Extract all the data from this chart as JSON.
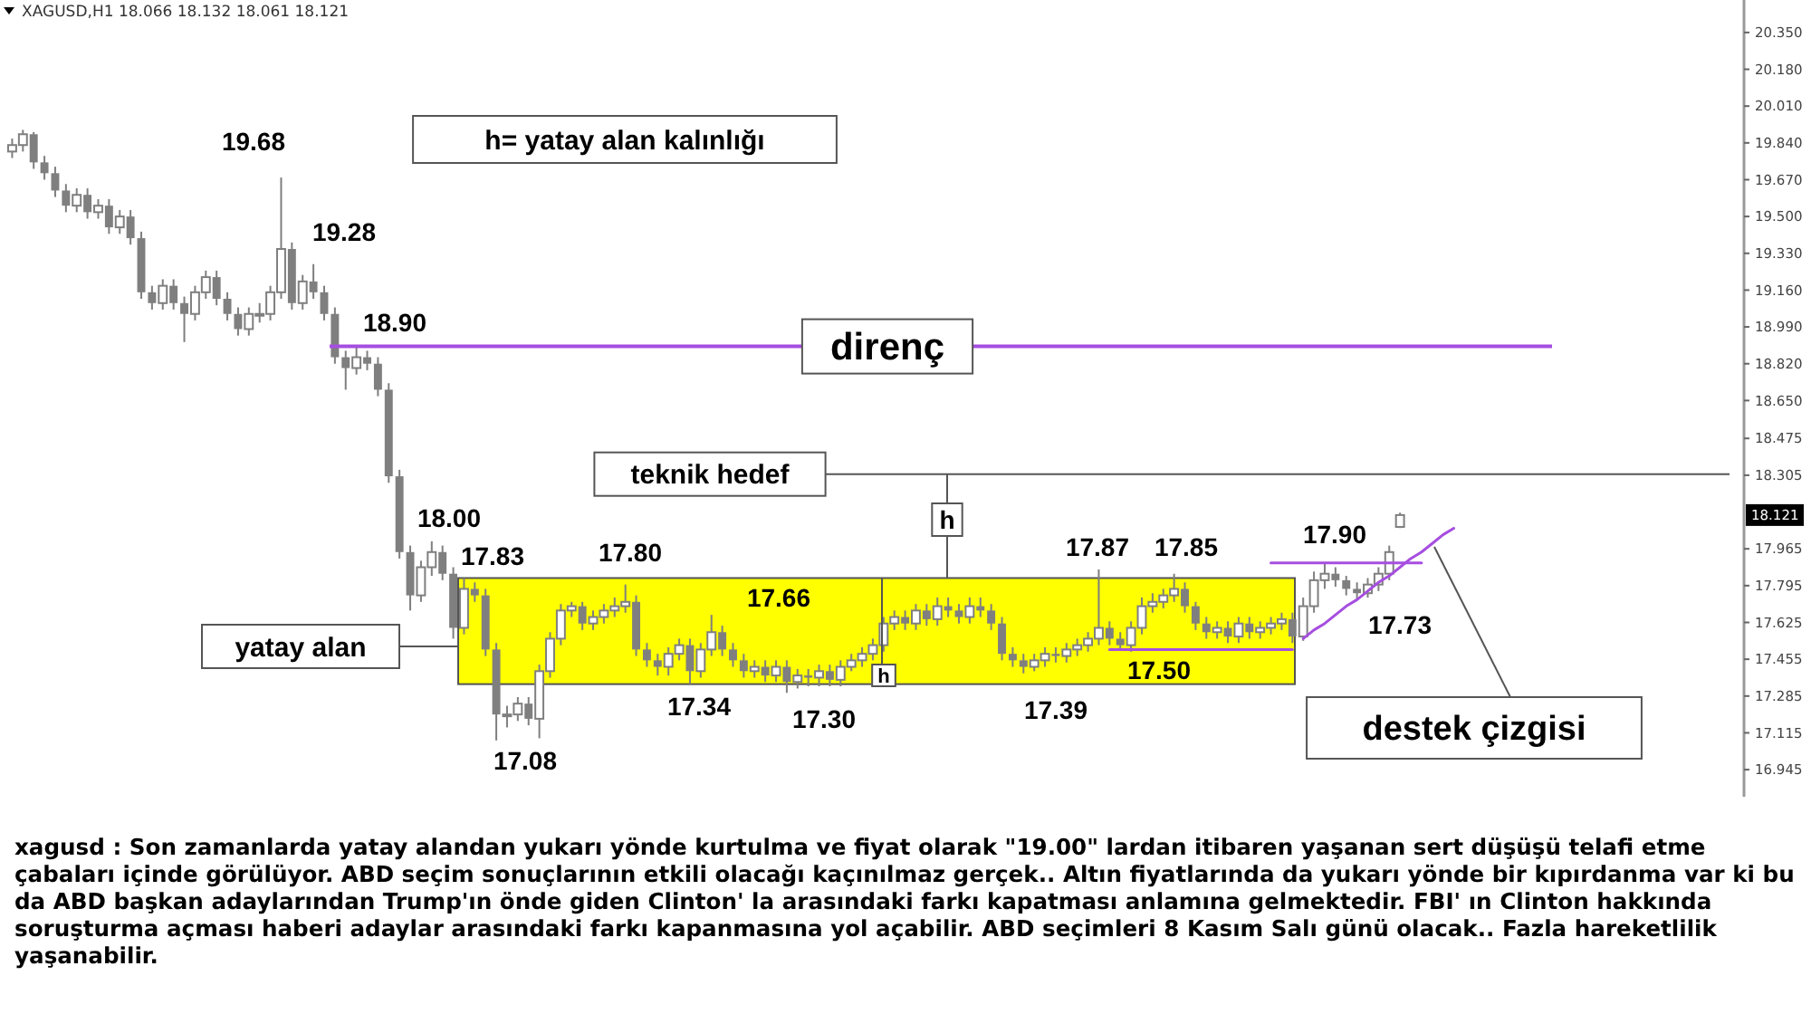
{
  "chart_data": {
    "type": "candlestick",
    "color": "#7f7f7f",
    "categories": [
      null,
      null,
      null,
      null,
      null,
      null,
      null,
      null,
      null,
      null,
      null,
      null,
      null,
      null,
      null,
      null,
      null,
      null,
      null,
      null,
      null,
      null,
      null,
      null,
      null,
      null,
      null,
      null,
      null,
      null,
      null,
      null,
      null,
      null,
      null,
      null,
      null,
      null,
      null,
      null,
      null,
      null,
      null,
      null,
      null,
      null,
      null,
      null,
      null,
      null,
      null,
      null,
      null,
      null,
      null,
      null,
      null,
      null,
      null,
      null,
      null,
      null,
      null,
      null,
      null,
      null,
      null,
      null,
      null,
      null,
      null,
      null,
      null,
      null,
      null,
      null,
      null,
      null,
      null,
      null,
      null,
      null,
      null,
      null,
      null,
      null,
      null,
      null,
      null,
      null,
      null,
      null,
      null,
      null,
      null,
      null,
      null,
      null,
      null,
      null,
      null,
      null,
      null,
      null,
      null,
      null,
      null,
      null,
      null,
      null,
      null,
      null,
      null,
      null,
      null,
      null,
      null,
      null,
      null,
      null,
      null,
      null,
      null,
      null,
      null,
      null,
      null,
      null,
      null,
      null,
      null,
      null,
      null,
      null,
      null,
      null,
      null,
      null,
      null,
      null,
      null,
      null,
      null,
      null,
      null,
      null,
      null,
      null,
      null,
      null,
      null,
      null,
      null,
      null,
      null,
      null,
      null,
      null,
      null,
      null
    ],
    "ohlc": [
      [
        19.8,
        19.86,
        19.77,
        19.83
      ],
      [
        19.83,
        19.9,
        19.8,
        19.88
      ],
      [
        19.88,
        19.89,
        19.72,
        19.75
      ],
      [
        19.75,
        19.78,
        19.67,
        19.7
      ],
      [
        19.7,
        19.73,
        19.59,
        19.62
      ],
      [
        19.62,
        19.65,
        19.52,
        19.55
      ],
      [
        19.55,
        19.63,
        19.52,
        19.6
      ],
      [
        19.6,
        19.63,
        19.49,
        19.52
      ],
      [
        19.52,
        19.58,
        19.49,
        19.55
      ],
      [
        19.55,
        19.58,
        19.42,
        19.45
      ],
      [
        19.45,
        19.53,
        19.42,
        19.5
      ],
      [
        19.5,
        19.53,
        19.37,
        19.4
      ],
      [
        19.4,
        19.43,
        19.12,
        19.15
      ],
      [
        19.15,
        19.18,
        19.07,
        19.1
      ],
      [
        19.1,
        19.21,
        19.07,
        19.18
      ],
      [
        19.18,
        19.21,
        19.07,
        19.1
      ],
      [
        19.1,
        19.13,
        18.92,
        19.05
      ],
      [
        19.05,
        19.18,
        19.02,
        19.15
      ],
      [
        19.15,
        19.25,
        19.12,
        19.22
      ],
      [
        19.22,
        19.25,
        19.09,
        19.12
      ],
      [
        19.12,
        19.15,
        19.02,
        19.05
      ],
      [
        19.05,
        19.08,
        18.95,
        18.98
      ],
      [
        18.98,
        19.08,
        18.95,
        19.05
      ],
      [
        19.05,
        19.1,
        19.01,
        19.05
      ],
      [
        19.05,
        19.18,
        19.02,
        19.15
      ],
      [
        19.15,
        19.68,
        19.12,
        19.35
      ],
      [
        19.35,
        19.38,
        19.07,
        19.1
      ],
      [
        19.1,
        19.23,
        19.07,
        19.2
      ],
      [
        19.2,
        19.28,
        19.12,
        19.15
      ],
      [
        19.15,
        19.18,
        19.02,
        19.05
      ],
      [
        19.05,
        19.08,
        18.82,
        18.85
      ],
      [
        18.85,
        18.88,
        18.7,
        18.8
      ],
      [
        18.8,
        18.9,
        18.77,
        18.85
      ],
      [
        18.85,
        18.88,
        18.79,
        18.82
      ],
      [
        18.82,
        18.85,
        18.67,
        18.7
      ],
      [
        18.7,
        18.73,
        18.27,
        18.3
      ],
      [
        18.3,
        18.33,
        17.92,
        17.95
      ],
      [
        17.95,
        17.98,
        17.68,
        17.75
      ],
      [
        17.75,
        17.91,
        17.72,
        17.88
      ],
      [
        17.88,
        18.0,
        17.84,
        17.95
      ],
      [
        17.95,
        17.98,
        17.82,
        17.85
      ],
      [
        17.85,
        17.88,
        17.55,
        17.6
      ],
      [
        17.6,
        17.83,
        17.57,
        17.78
      ],
      [
        17.78,
        17.81,
        17.72,
        17.75
      ],
      [
        17.75,
        17.78,
        17.47,
        17.5
      ],
      [
        17.5,
        17.53,
        17.08,
        17.2
      ],
      [
        17.2,
        17.24,
        17.14,
        17.2
      ],
      [
        17.2,
        17.28,
        17.17,
        17.25
      ],
      [
        17.25,
        17.28,
        17.15,
        17.18
      ],
      [
        17.18,
        17.43,
        17.09,
        17.4
      ],
      [
        17.4,
        17.58,
        17.37,
        17.55
      ],
      [
        17.55,
        17.71,
        17.52,
        17.68
      ],
      [
        17.68,
        17.72,
        17.65,
        17.7
      ],
      [
        17.7,
        17.72,
        17.59,
        17.62
      ],
      [
        17.62,
        17.68,
        17.59,
        17.65
      ],
      [
        17.65,
        17.71,
        17.62,
        17.68
      ],
      [
        17.68,
        17.74,
        17.65,
        17.7
      ],
      [
        17.7,
        17.8,
        17.67,
        17.72
      ],
      [
        17.72,
        17.75,
        17.47,
        17.5
      ],
      [
        17.5,
        17.53,
        17.42,
        17.45
      ],
      [
        17.45,
        17.48,
        17.38,
        17.42
      ],
      [
        17.42,
        17.51,
        17.38,
        17.48
      ],
      [
        17.48,
        17.55,
        17.45,
        17.52
      ],
      [
        17.52,
        17.55,
        17.34,
        17.4
      ],
      [
        17.4,
        17.53,
        17.37,
        17.5
      ],
      [
        17.5,
        17.66,
        17.47,
        17.58
      ],
      [
        17.58,
        17.61,
        17.47,
        17.5
      ],
      [
        17.5,
        17.53,
        17.42,
        17.45
      ],
      [
        17.45,
        17.48,
        17.37,
        17.4
      ],
      [
        17.4,
        17.45,
        17.37,
        17.42
      ],
      [
        17.42,
        17.45,
        17.35,
        17.38
      ],
      [
        17.38,
        17.45,
        17.35,
        17.42
      ],
      [
        17.42,
        17.45,
        17.3,
        17.35
      ],
      [
        17.35,
        17.41,
        17.32,
        17.38
      ],
      [
        17.38,
        17.41,
        17.33,
        17.37
      ],
      [
        17.37,
        17.43,
        17.33,
        17.4
      ],
      [
        17.4,
        17.43,
        17.33,
        17.36
      ],
      [
        17.36,
        17.45,
        17.33,
        17.42
      ],
      [
        17.42,
        17.48,
        17.4,
        17.45
      ],
      [
        17.45,
        17.51,
        17.42,
        17.48
      ],
      [
        17.48,
        17.55,
        17.45,
        17.52
      ],
      [
        17.52,
        17.65,
        17.49,
        17.62
      ],
      [
        17.62,
        17.68,
        17.59,
        17.65
      ],
      [
        17.65,
        17.68,
        17.59,
        17.62
      ],
      [
        17.62,
        17.71,
        17.59,
        17.68
      ],
      [
        17.68,
        17.71,
        17.61,
        17.64
      ],
      [
        17.64,
        17.74,
        17.61,
        17.7
      ],
      [
        17.7,
        17.74,
        17.65,
        17.68
      ],
      [
        17.68,
        17.71,
        17.62,
        17.65
      ],
      [
        17.65,
        17.74,
        17.62,
        17.7
      ],
      [
        17.7,
        17.74,
        17.65,
        17.68
      ],
      [
        17.68,
        17.71,
        17.59,
        17.62
      ],
      [
        17.62,
        17.65,
        17.45,
        17.48
      ],
      [
        17.48,
        17.51,
        17.42,
        17.45
      ],
      [
        17.45,
        17.48,
        17.39,
        17.42
      ],
      [
        17.42,
        17.48,
        17.4,
        17.45
      ],
      [
        17.45,
        17.51,
        17.42,
        17.48
      ],
      [
        17.48,
        17.51,
        17.44,
        17.47
      ],
      [
        17.47,
        17.53,
        17.44,
        17.5
      ],
      [
        17.5,
        17.55,
        17.47,
        17.52
      ],
      [
        17.52,
        17.58,
        17.49,
        17.55
      ],
      [
        17.55,
        17.87,
        17.52,
        17.6
      ],
      [
        17.6,
        17.63,
        17.52,
        17.55
      ],
      [
        17.55,
        17.58,
        17.5,
        17.52
      ],
      [
        17.52,
        17.63,
        17.49,
        17.6
      ],
      [
        17.6,
        17.74,
        17.57,
        17.7
      ],
      [
        17.7,
        17.76,
        17.67,
        17.72
      ],
      [
        17.72,
        17.78,
        17.69,
        17.75
      ],
      [
        17.75,
        17.85,
        17.72,
        17.78
      ],
      [
        17.78,
        17.81,
        17.67,
        17.7
      ],
      [
        17.7,
        17.72,
        17.59,
        17.62
      ],
      [
        17.62,
        17.65,
        17.55,
        17.58
      ],
      [
        17.58,
        17.63,
        17.55,
        17.6
      ],
      [
        17.6,
        17.63,
        17.53,
        17.56
      ],
      [
        17.56,
        17.65,
        17.53,
        17.62
      ],
      [
        17.62,
        17.65,
        17.55,
        17.58
      ],
      [
        17.58,
        17.63,
        17.55,
        17.6
      ],
      [
        17.6,
        17.65,
        17.57,
        17.62
      ],
      [
        17.62,
        17.67,
        17.59,
        17.64
      ],
      [
        17.64,
        17.67,
        17.53,
        17.56
      ],
      [
        17.56,
        17.74,
        17.54,
        17.7
      ],
      [
        17.7,
        17.86,
        17.67,
        17.82
      ],
      [
        17.82,
        17.9,
        17.78,
        17.85
      ],
      [
        17.85,
        17.88,
        17.79,
        17.82
      ],
      [
        17.82,
        17.84,
        17.75,
        17.78
      ],
      [
        17.78,
        17.81,
        17.73,
        17.76
      ],
      [
        17.76,
        17.83,
        17.74,
        17.8
      ],
      [
        17.8,
        17.88,
        17.77,
        17.85
      ],
      [
        17.85,
        17.98,
        17.82,
        17.95
      ],
      [
        18.066,
        18.132,
        18.061,
        18.121
      ],
      null,
      null,
      null,
      null,
      null,
      null,
      null,
      null,
      null,
      null,
      null,
      null,
      null,
      null,
      null,
      null,
      null,
      null,
      null,
      null,
      null,
      null,
      null,
      null,
      null,
      null,
      null,
      null,
      null,
      null
    ],
    "series": [
      {
        "type": "line",
        "color": "#a64ee0",
        "values": [
          null,
          null,
          null,
          null,
          null,
          null,
          null,
          null,
          null,
          null,
          null,
          null,
          null,
          null,
          null,
          null,
          null,
          null,
          null,
          null,
          null,
          null,
          null,
          null,
          null,
          null,
          null,
          null,
          null,
          null,
          null,
          null,
          null,
          null,
          null,
          null,
          null,
          null,
          null,
          null,
          null,
          null,
          null,
          null,
          null,
          null,
          null,
          null,
          null,
          null,
          null,
          null,
          null,
          null,
          null,
          null,
          null,
          null,
          null,
          null,
          null,
          null,
          null,
          null,
          null,
          null,
          null,
          null,
          null,
          null,
          null,
          null,
          null,
          null,
          null,
          null,
          null,
          null,
          null,
          null,
          null,
          null,
          null,
          null,
          null,
          null,
          null,
          null,
          null,
          null,
          null,
          null,
          null,
          null,
          null,
          null,
          null,
          null,
          null,
          null,
          null,
          null,
          17.5,
          17.5,
          17.5,
          17.5,
          17.5,
          17.5,
          17.5,
          17.5,
          17.5,
          17.5,
          17.5,
          17.5,
          17.5,
          17.5,
          17.5,
          17.5,
          17.5,
          17.5,
          null,
          null,
          null,
          null,
          null,
          null,
          null,
          null,
          null,
          null,
          null,
          null,
          null,
          null,
          null,
          null,
          null,
          null,
          null,
          null,
          null,
          null,
          null,
          null,
          null,
          null,
          null,
          null,
          null,
          null,
          null,
          null,
          null,
          null,
          null,
          null,
          null,
          null,
          null,
          null
        ]
      },
      {
        "type": "line",
        "color": "#a64ee0",
        "values": [
          null,
          null,
          null,
          null,
          null,
          null,
          null,
          null,
          null,
          null,
          null,
          null,
          null,
          null,
          null,
          null,
          null,
          null,
          null,
          null,
          null,
          null,
          null,
          null,
          null,
          null,
          null,
          null,
          null,
          null,
          null,
          null,
          null,
          null,
          null,
          null,
          null,
          null,
          null,
          null,
          null,
          null,
          null,
          null,
          null,
          null,
          null,
          null,
          null,
          null,
          null,
          null,
          null,
          null,
          null,
          null,
          null,
          null,
          null,
          null,
          null,
          null,
          null,
          null,
          null,
          null,
          null,
          null,
          null,
          null,
          null,
          null,
          null,
          null,
          null,
          null,
          null,
          null,
          null,
          null,
          null,
          null,
          null,
          null,
          null,
          null,
          null,
          null,
          null,
          null,
          null,
          null,
          null,
          null,
          null,
          null,
          null,
          null,
          null,
          null,
          null,
          null,
          null,
          null,
          null,
          null,
          null,
          null,
          null,
          null,
          null,
          null,
          null,
          null,
          null,
          null,
          null,
          17.9,
          17.9,
          17.9,
          17.9,
          17.9,
          17.9,
          17.9,
          17.9,
          17.9,
          17.9,
          17.9,
          17.9,
          17.9,
          17.9,
          17.9,
          null,
          null,
          null,
          null,
          null,
          null,
          null,
          null,
          null,
          null,
          null,
          null,
          null,
          null,
          null,
          null,
          null,
          null,
          null,
          null,
          null,
          null,
          null,
          null,
          null,
          null,
          null,
          null
        ]
      },
      {
        "type": "line",
        "color": "#a64ee0",
        "values": [
          null,
          null,
          null,
          null,
          null,
          null,
          null,
          null,
          null,
          null,
          null,
          null,
          null,
          null,
          null,
          null,
          null,
          null,
          null,
          null,
          null,
          null,
          null,
          null,
          null,
          null,
          null,
          null,
          null,
          null,
          null,
          null,
          null,
          null,
          null,
          null,
          null,
          null,
          null,
          null,
          null,
          null,
          null,
          null,
          null,
          null,
          null,
          null,
          null,
          null,
          null,
          null,
          null,
          null,
          null,
          null,
          null,
          null,
          null,
          null,
          null,
          null,
          null,
          null,
          null,
          null,
          null,
          null,
          null,
          null,
          null,
          null,
          null,
          null,
          null,
          null,
          null,
          null,
          null,
          null,
          null,
          null,
          null,
          null,
          null,
          null,
          null,
          null,
          null,
          null,
          null,
          null,
          null,
          null,
          null,
          null,
          null,
          null,
          null,
          null,
          null,
          null,
          null,
          null,
          null,
          null,
          null,
          null,
          null,
          null,
          null,
          null,
          null,
          null,
          null,
          null,
          null,
          null,
          null,
          null,
          17.55,
          17.59,
          17.62,
          17.66,
          17.7,
          17.73,
          17.77,
          17.81,
          17.84,
          17.88,
          17.92,
          17.95,
          17.99,
          18.03,
          18.06,
          null,
          null,
          null,
          null,
          null,
          null,
          null,
          null,
          null,
          null,
          null,
          null,
          null,
          null,
          null,
          null,
          null,
          null,
          null,
          null,
          null,
          null,
          null,
          null,
          null
        ]
      }
    ],
    "ylim": [
      16.82,
      20.5
    ],
    "yticks": [
      {
        "value": 20.35,
        "label": "20.350"
      },
      {
        "value": 20.18,
        "label": "20.180"
      },
      {
        "value": 20.01,
        "label": "20.010"
      },
      {
        "value": 19.84,
        "label": "19.840"
      },
      {
        "value": 19.67,
        "label": "19.670"
      },
      {
        "value": 19.5,
        "label": "19.500"
      },
      {
        "value": 19.33,
        "label": "19.330"
      },
      {
        "value": 19.16,
        "label": "19.160"
      },
      {
        "value": 18.99,
        "label": "18.990"
      },
      {
        "value": 18.82,
        "label": "18.820"
      },
      {
        "value": 18.65,
        "label": "18.650"
      },
      {
        "value": 18.475,
        "label": "18.475"
      },
      {
        "value": 18.305,
        "label": "18.305"
      },
      {
        "value": 17.965,
        "label": "17.965"
      },
      {
        "value": 17.795,
        "label": "17.795"
      },
      {
        "value": 17.625,
        "label": "17.625"
      },
      {
        "value": 17.455,
        "label": "17.455"
      },
      {
        "value": 17.285,
        "label": "17.285"
      },
      {
        "value": 17.115,
        "label": "17.115"
      },
      {
        "value": 16.945,
        "label": "16.945"
      }
    ],
    "ref_lines": [
      {
        "axis": "y",
        "value": 18.9,
        "label": "direnç",
        "color": "#a64ee0"
      },
      {
        "axis": "y",
        "value": 18.31,
        "label": "teknik hedef",
        "color": "#555555"
      }
    ],
    "bands": [
      {
        "axis": "y",
        "from": 17.34,
        "to": 17.83,
        "label": "yatay alan",
        "color": "#ffff00"
      }
    ],
    "annotations": [
      "XAGUSD,H1  18.066 18.132 18.061 18.121",
      "h= yatay alan kalınlığı",
      "h",
      "h",
      "destek çizgisi",
      "xagusd :  Son zamanlarda yatay alandan yukarı yönde kurtulma ve fiyat olarak \"19.00\" lardan itibaren yaşanan sert düşüşü telafi etme çabaları içinde görülüyor. ABD seçim sonuçlarının etkili olacağı kaçınılmaz gerçek.. Altın fiyatlarında da yukarı yönde bir kıpırdanma var ki bu da ABD başkan adaylarından Trump'ın önde giden Clinton' la arasındaki farkı kapatması anlamına gelmektedir. FBI' ın Clinton hakkında soruşturma açması haberi adaylar arasındaki farkı kapanmasına yol açabilir. ABD seçimleri 8 Kasım Salı günü olacak.. Fazla hareketlilik yaşanabilir.",
      "19.68",
      "19.28",
      "18.90",
      "18.00",
      "17.83",
      "17.08",
      "17.80",
      "17.66",
      "17.34",
      "17.30",
      "17.39",
      "17.87",
      "17.85",
      "17.50",
      "17.90",
      "17.73",
      "18.121"
    ]
  }
}
